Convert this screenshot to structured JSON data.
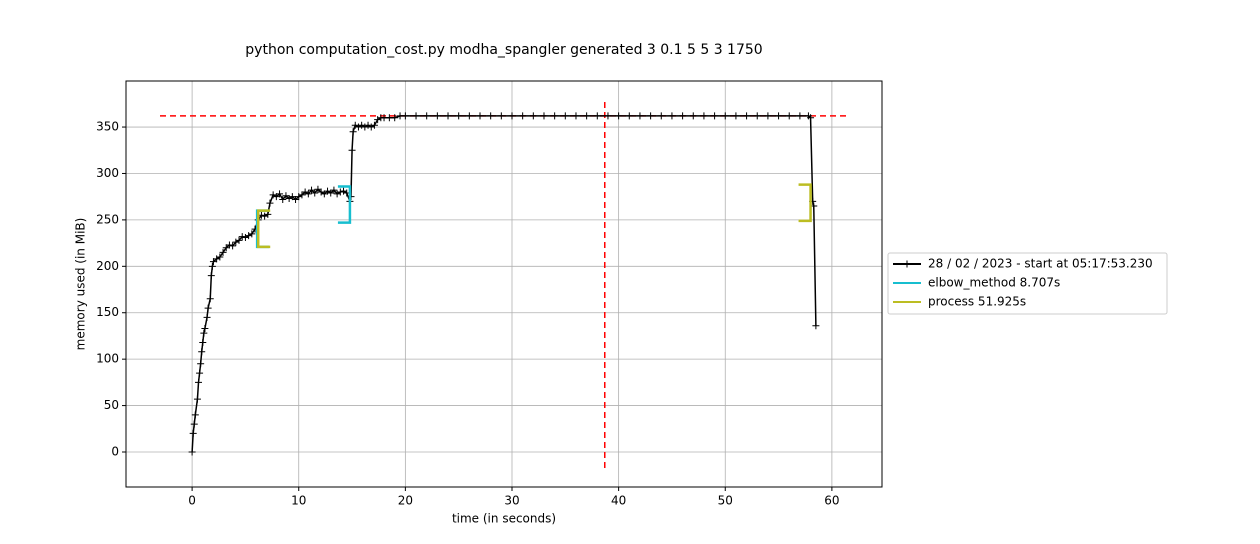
{
  "chart_data": {
    "type": "line",
    "title": "python computation_cost.py modha_spangler generated 3 0.1 5 5 3 1750",
    "x_label": "time (in seconds)",
    "y_label": "memory used (in MiB)",
    "xlim": [
      -6.2,
      64.7
    ],
    "ylim": [
      -37.7,
      399.6
    ],
    "xticks": [
      0,
      10,
      20,
      30,
      40,
      50,
      60
    ],
    "yticks": [
      0,
      50,
      100,
      150,
      200,
      250,
      300,
      350
    ],
    "grid": true,
    "legend": "outside right",
    "series": [
      {
        "name": "28 / 02 / 2023 - start at 05:17:53.230",
        "color": "#000000",
        "x": [
          0,
          0.1,
          0.2,
          0.3,
          0.5,
          0.6,
          0.7,
          0.8,
          0.9,
          1.0,
          1.1,
          1.2,
          1.4,
          1.5,
          1.7,
          1.8,
          1.9,
          2.0,
          2.3,
          2.6,
          2.9,
          3.2,
          3.5,
          3.8,
          4.1,
          4.4,
          4.7,
          5.0,
          5.3,
          5.6,
          5.9,
          6.2,
          6.5,
          6.8,
          7.1,
          7.3,
          7.6,
          7.9,
          8.2,
          8.5,
          8.8,
          9.1,
          9.4,
          9.7,
          10.0,
          10.3,
          10.6,
          10.9,
          11.2,
          11.5,
          11.8,
          12.1,
          12.4,
          12.7,
          13.0,
          13.3,
          13.6,
          13.9,
          14.2,
          14.5,
          14.8,
          14.9,
          15.0,
          15.1,
          15.3,
          15.6,
          15.9,
          16.2,
          16.5,
          16.8,
          17.1,
          17.4,
          17.7,
          18.0,
          18.5,
          19.0,
          19.5,
          20,
          21,
          22,
          23,
          24,
          25,
          26,
          27,
          28,
          29,
          30,
          31,
          32,
          33,
          34,
          35,
          36,
          37,
          38,
          39,
          40,
          41,
          42,
          43,
          44,
          45,
          46,
          47,
          48,
          49,
          50,
          51,
          52,
          53,
          54,
          55,
          56,
          57,
          57.8,
          58.0,
          58.2,
          58.3,
          58.5
        ],
        "values": [
          0,
          20,
          30,
          40,
          57,
          75,
          85,
          95,
          108,
          118,
          128,
          133,
          145,
          155,
          165,
          190,
          200,
          205,
          208,
          210,
          215,
          220,
          223,
          222,
          226,
          228,
          232,
          231,
          233,
          235,
          240,
          250,
          255,
          254,
          256,
          268,
          277,
          275,
          278,
          272,
          276,
          273,
          275,
          272,
          275,
          277,
          280,
          278,
          282,
          279,
          283,
          280,
          278,
          281,
          279,
          282,
          278,
          280,
          281,
          279,
          270,
          275,
          325,
          345,
          352,
          350,
          352,
          350,
          352,
          350,
          352,
          358,
          360,
          360,
          360,
          360,
          362,
          362,
          362,
          362,
          362,
          362,
          362,
          362,
          362,
          362,
          362,
          362,
          362,
          362,
          362,
          362,
          362,
          362,
          362,
          362,
          362,
          362,
          362,
          362,
          362,
          362,
          362,
          362,
          362,
          362,
          362,
          362,
          362,
          362,
          362,
          362,
          362,
          362,
          362,
          362,
          360,
          270,
          265,
          136
        ]
      }
    ],
    "functions": [
      {
        "name": "elbow_method 8.707s",
        "color": "#17becf",
        "start": 6.1,
        "end": 14.8,
        "start_range": [
          221,
          260
        ],
        "end_range": [
          247,
          286
        ]
      },
      {
        "name": "process 51.925s",
        "color": "#bcbd22",
        "start": 6.2,
        "end": 58.0,
        "start_range": [
          221,
          260
        ],
        "end_range": [
          249,
          288
        ]
      }
    ],
    "max_memory": 362,
    "max_time": 38.7,
    "max_color": "#ff0000"
  }
}
